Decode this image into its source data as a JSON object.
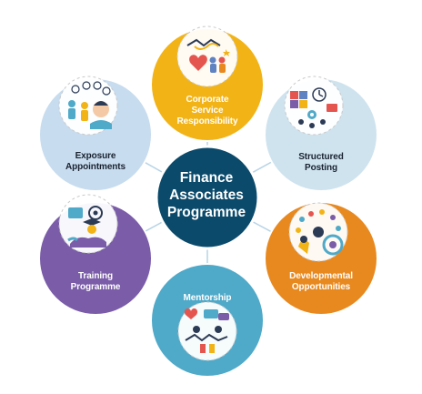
{
  "center": {
    "lines": [
      "Finance",
      "Associates",
      "Programme"
    ],
    "color": "#0b4a6b"
  },
  "nodes": [
    {
      "id": "csr",
      "lines": [
        "Corporate",
        "Service",
        "Responsibility"
      ],
      "color": "#f2b316",
      "text_color": "#ffffff",
      "icon": "handshake-and-volunteers-icon"
    },
    {
      "id": "posting",
      "lines": [
        "Structured",
        "Posting"
      ],
      "color": "#cfe3ef",
      "text_color": "#1a2230",
      "icon": "structured-posting-icon"
    },
    {
      "id": "developmental",
      "lines": [
        "Developmental",
        "Opportunities"
      ],
      "color": "#e8891f",
      "text_color": "#ffffff",
      "icon": "growth-network-icon"
    },
    {
      "id": "mentorship",
      "lines": [
        "Mentorship"
      ],
      "color": "#4fa9c8",
      "text_color": "#ffffff",
      "icon": "mentorship-icon"
    },
    {
      "id": "training",
      "lines": [
        "Training",
        "Programme"
      ],
      "color": "#7a5ca8",
      "text_color": "#ffffff",
      "icon": "training-icon"
    },
    {
      "id": "exposure",
      "lines": [
        "Exposure",
        "Appointments"
      ],
      "color": "#c7dcee",
      "text_color": "#1a2230",
      "icon": "exposure-icon"
    }
  ],
  "connector_color": "#b7d3e6"
}
